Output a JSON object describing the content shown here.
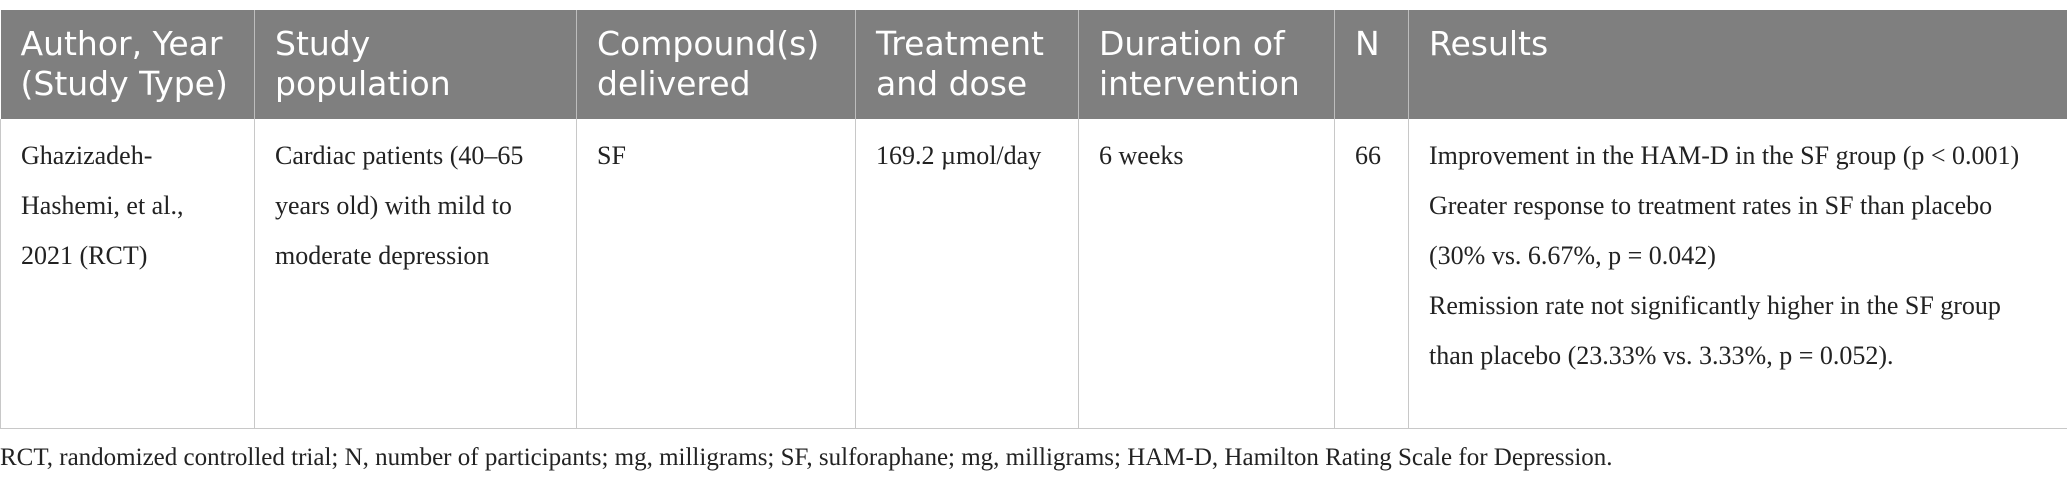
{
  "table": {
    "headers": [
      "Author, Year (Study Type)",
      "Study population",
      "Compound(s) delivered",
      "Treatment and dose",
      "Duration of intervention",
      "N",
      "Results"
    ],
    "rows": [
      [
        "Ghazizadeh-Hashemi, et al., 2021 (RCT)",
        "Cardiac patients (40–65 years old) with mild to moderate depression",
        "SF",
        "169.2 µmol/day",
        "6 weeks",
        "66",
        [
          "Improvement in the HAM-D in the SF group (p < 0.001)",
          "Greater response to treatment rates in SF than placebo (30% vs. 6.67%, p = 0.042)",
          "Remission rate not significantly higher in the SF group than placebo (23.33% vs. 3.33%, p = 0.052)."
        ]
      ]
    ]
  },
  "footnote": "RCT, randomized controlled trial; N, number of participants; mg, milligrams; SF, sulforaphane; mg, milligrams; HAM-D, Hamilton Rating Scale for Depression."
}
